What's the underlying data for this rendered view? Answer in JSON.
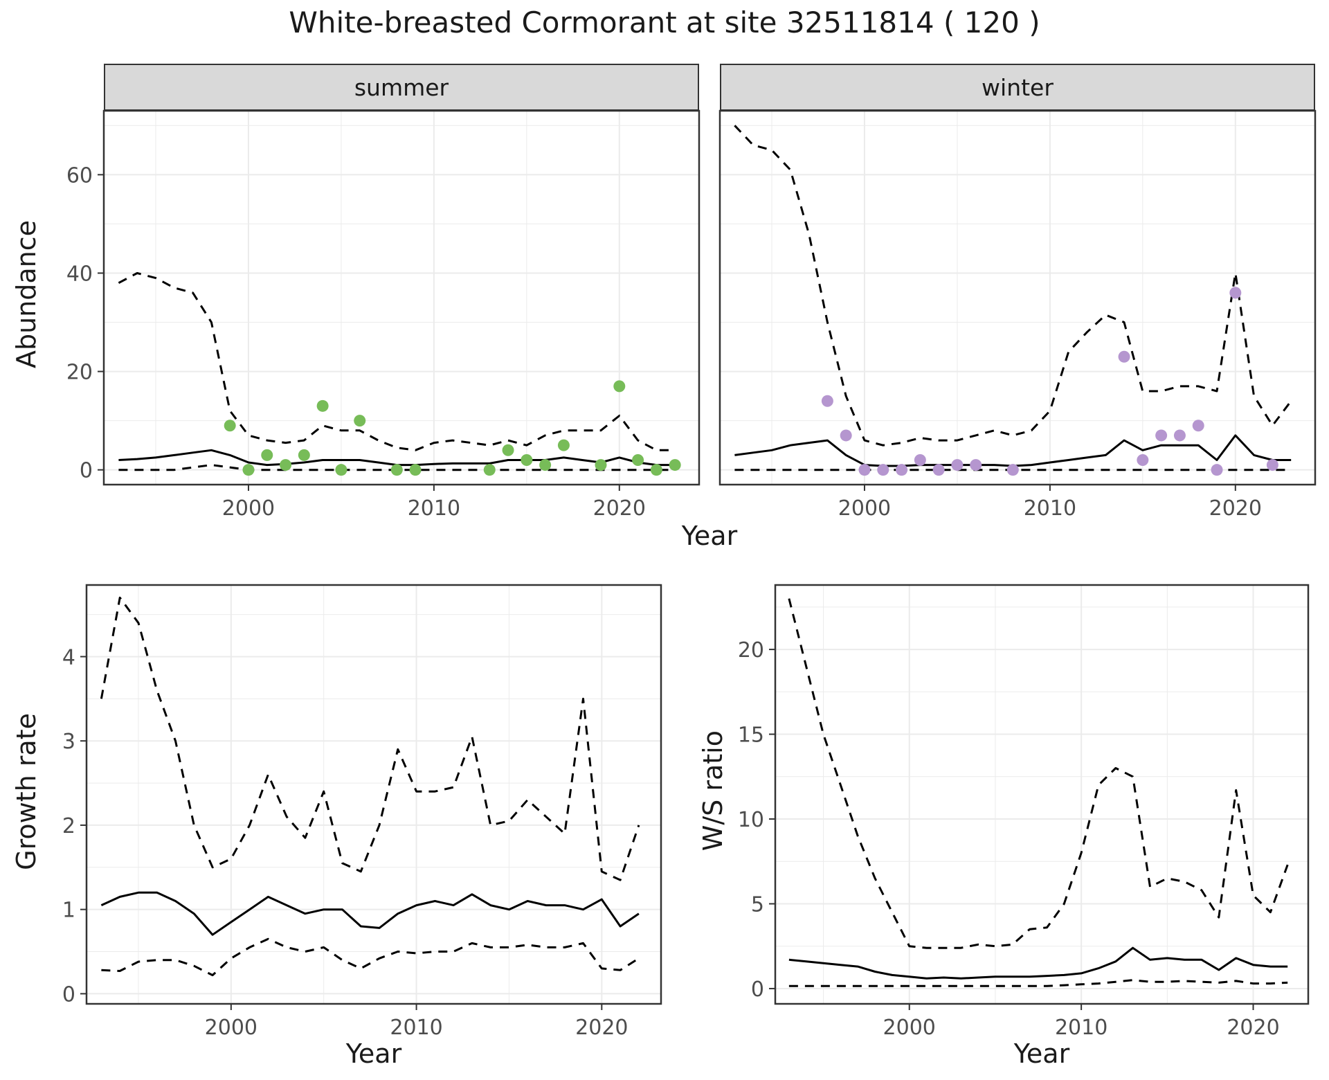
{
  "title": "White-breasted Cormorant at site 32511814 ( 120 )",
  "facets": [
    "summer",
    "winter"
  ],
  "colors": {
    "summer_points": "#77bc58",
    "winter_points": "#b596cf",
    "line": "#000000",
    "grid": "#ebebeb",
    "strip_bg": "#d9d9d9",
    "panel_border": "#333333",
    "tick_text": "#4d4d4d",
    "title_text": "#1a1a1a"
  },
  "chart_data": [
    {
      "id": "abundance_summer",
      "type": "line",
      "facet": "summer",
      "xlabel": "Year",
      "ylabel": "Abundance",
      "xlim": [
        1992.2,
        2024.3
      ],
      "ylim": [
        -3,
        73
      ],
      "xticks": [
        2000,
        2010,
        2020
      ],
      "yticks": [
        0,
        20,
        40,
        60
      ],
      "grid": true,
      "legend": "none",
      "series": [
        {
          "name": "upper-ci",
          "style": "dashed",
          "x": [
            1993,
            1994,
            1995,
            1996,
            1997,
            1998,
            1999,
            2000,
            2001,
            2002,
            2003,
            2004,
            2005,
            2006,
            2007,
            2008,
            2009,
            2010,
            2011,
            2012,
            2013,
            2014,
            2015,
            2016,
            2017,
            2018,
            2019,
            2020,
            2021,
            2022,
            2023
          ],
          "values": [
            38,
            40,
            39,
            37,
            36,
            30,
            12,
            7,
            6,
            5.5,
            6,
            9,
            8,
            8,
            6,
            4.5,
            4,
            5.5,
            6,
            5.5,
            5,
            6,
            5,
            7,
            8,
            8,
            8,
            11,
            6,
            4,
            4
          ]
        },
        {
          "name": "lower-ci",
          "style": "dashed",
          "x": [
            1993,
            1994,
            1995,
            1996,
            1997,
            1998,
            1999,
            2000,
            2001,
            2002,
            2003,
            2004,
            2005,
            2006,
            2007,
            2008,
            2009,
            2010,
            2011,
            2012,
            2013,
            2014,
            2015,
            2016,
            2017,
            2018,
            2019,
            2020,
            2021,
            2022,
            2023
          ],
          "values": [
            0,
            0,
            0,
            0,
            0.5,
            1,
            0.5,
            0,
            0,
            0,
            0,
            0,
            0,
            0,
            0,
            0,
            0,
            0,
            0,
            0,
            0,
            0,
            0,
            0,
            0,
            0,
            0,
            0,
            0,
            0,
            0
          ]
        },
        {
          "name": "median",
          "style": "solid",
          "x": [
            1993,
            1994,
            1995,
            1996,
            1997,
            1998,
            1999,
            2000,
            2001,
            2002,
            2003,
            2004,
            2005,
            2006,
            2007,
            2008,
            2009,
            2010,
            2011,
            2012,
            2013,
            2014,
            2015,
            2016,
            2017,
            2018,
            2019,
            2020,
            2021,
            2022,
            2023
          ],
          "values": [
            2,
            2.2,
            2.5,
            3,
            3.5,
            4,
            3,
            1.5,
            1,
            1.2,
            1.5,
            2,
            2,
            2,
            1.5,
            1,
            1,
            1.2,
            1.3,
            1.3,
            1.3,
            2,
            2,
            2,
            2.5,
            2,
            1.5,
            2.5,
            1.5,
            1,
            1
          ]
        },
        {
          "name": "observed-counts",
          "style": "points",
          "color_key": "summer_points",
          "x": [
            1999,
            2000,
            2001,
            2002,
            2003,
            2004,
            2005,
            2006,
            2008,
            2009,
            2013,
            2014,
            2015,
            2016,
            2017,
            2019,
            2020,
            2021,
            2022,
            2023
          ],
          "values": [
            9,
            0,
            3,
            1,
            3,
            13,
            0,
            10,
            0,
            0,
            0,
            4,
            2,
            1,
            5,
            1,
            17,
            2,
            0,
            1
          ]
        }
      ]
    },
    {
      "id": "abundance_winter",
      "type": "line",
      "facet": "winter",
      "xlabel": "Year",
      "ylabel": "Abundance",
      "xlim": [
        1992.2,
        2024.3
      ],
      "ylim": [
        -3,
        73
      ],
      "xticks": [
        2000,
        2010,
        2020
      ],
      "yticks": [
        0,
        20,
        40,
        60
      ],
      "grid": true,
      "legend": "none",
      "series": [
        {
          "name": "upper-ci",
          "style": "dashed",
          "x": [
            1993,
            1994,
            1995,
            1996,
            1997,
            1998,
            1999,
            2000,
            2001,
            2002,
            2003,
            2004,
            2005,
            2006,
            2007,
            2008,
            2009,
            2010,
            2011,
            2012,
            2013,
            2014,
            2015,
            2016,
            2017,
            2018,
            2019,
            2020,
            2021,
            2022,
            2023
          ],
          "values": [
            70,
            66,
            65,
            61,
            48,
            30,
            15,
            6,
            5,
            5.5,
            6.5,
            6,
            6,
            7,
            8,
            7,
            8,
            12,
            24,
            28,
            31.5,
            30,
            16,
            16,
            17,
            17,
            16,
            40,
            15,
            9,
            14
          ]
        },
        {
          "name": "lower-ci",
          "style": "dashed",
          "x": [
            1993,
            1994,
            1995,
            1996,
            1997,
            1998,
            1999,
            2000,
            2001,
            2002,
            2003,
            2004,
            2005,
            2006,
            2007,
            2008,
            2009,
            2010,
            2011,
            2012,
            2013,
            2014,
            2015,
            2016,
            2017,
            2018,
            2019,
            2020,
            2021,
            2022,
            2023
          ],
          "values": [
            0,
            0,
            0,
            0,
            0,
            0,
            0,
            0,
            0,
            0,
            0,
            0,
            0,
            0,
            0,
            0,
            0,
            0,
            0,
            0,
            0,
            0,
            0,
            0,
            0,
            0,
            0,
            0,
            0,
            0,
            0
          ]
        },
        {
          "name": "median",
          "style": "solid",
          "x": [
            1993,
            1994,
            1995,
            1996,
            1997,
            1998,
            1999,
            2000,
            2001,
            2002,
            2003,
            2004,
            2005,
            2006,
            2007,
            2008,
            2009,
            2010,
            2011,
            2012,
            2013,
            2014,
            2015,
            2016,
            2017,
            2018,
            2019,
            2020,
            2021,
            2022,
            2023
          ],
          "values": [
            3,
            3.5,
            4,
            5,
            5.5,
            6,
            3,
            1,
            0.8,
            0.8,
            1,
            1,
            1,
            1,
            1,
            0.8,
            1,
            1.5,
            2,
            2.5,
            3,
            6,
            4,
            5,
            5,
            5,
            2,
            7,
            3,
            2,
            2
          ]
        },
        {
          "name": "observed-counts",
          "style": "points",
          "color_key": "winter_points",
          "x": [
            1998,
            1999,
            2000,
            2001,
            2002,
            2003,
            2004,
            2005,
            2006,
            2008,
            2014,
            2015,
            2016,
            2017,
            2018,
            2019,
            2020,
            2022
          ],
          "values": [
            14,
            7,
            0,
            0,
            0,
            2,
            0,
            1,
            1,
            0,
            23,
            2,
            7,
            7,
            9,
            0,
            36,
            1
          ]
        }
      ]
    },
    {
      "id": "growth_rate",
      "type": "line",
      "facet": "",
      "xlabel": "Year",
      "ylabel": "Growth rate",
      "xlim": [
        1992.2,
        2023.2
      ],
      "ylim": [
        -0.12,
        4.85
      ],
      "xticks": [
        2000,
        2010,
        2020
      ],
      "yticks": [
        0,
        1,
        2,
        3,
        4
      ],
      "grid": true,
      "legend": "none",
      "series": [
        {
          "name": "upper-ci",
          "style": "dashed",
          "x": [
            1993,
            1994,
            1995,
            1996,
            1997,
            1998,
            1999,
            2000,
            2001,
            2002,
            2003,
            2004,
            2005,
            2006,
            2007,
            2008,
            2009,
            2010,
            2011,
            2012,
            2013,
            2014,
            2015,
            2016,
            2017,
            2018,
            2019,
            2020,
            2021,
            2022
          ],
          "values": [
            3.5,
            4.7,
            4.4,
            3.6,
            3.0,
            2.0,
            1.5,
            1.6,
            2.0,
            2.6,
            2.1,
            1.85,
            2.4,
            1.55,
            1.45,
            2.0,
            2.9,
            2.4,
            2.4,
            2.45,
            3.05,
            2.0,
            2.05,
            2.3,
            2.1,
            1.9,
            3.5,
            1.45,
            1.35,
            2.0
          ]
        },
        {
          "name": "lower-ci",
          "style": "dashed",
          "x": [
            1993,
            1994,
            1995,
            1996,
            1997,
            1998,
            1999,
            2000,
            2001,
            2002,
            2003,
            2004,
            2005,
            2006,
            2007,
            2008,
            2009,
            2010,
            2011,
            2012,
            2013,
            2014,
            2015,
            2016,
            2017,
            2018,
            2019,
            2020,
            2021,
            2022
          ],
          "values": [
            0.28,
            0.27,
            0.38,
            0.4,
            0.4,
            0.33,
            0.22,
            0.42,
            0.55,
            0.65,
            0.55,
            0.5,
            0.55,
            0.4,
            0.3,
            0.42,
            0.5,
            0.48,
            0.5,
            0.5,
            0.6,
            0.55,
            0.55,
            0.58,
            0.55,
            0.55,
            0.6,
            0.3,
            0.28,
            0.42
          ]
        },
        {
          "name": "median",
          "style": "solid",
          "x": [
            1993,
            1994,
            1995,
            1996,
            1997,
            1998,
            1999,
            2000,
            2001,
            2002,
            2003,
            2004,
            2005,
            2006,
            2007,
            2008,
            2009,
            2010,
            2011,
            2012,
            2013,
            2014,
            2015,
            2016,
            2017,
            2018,
            2019,
            2020,
            2021,
            2022
          ],
          "values": [
            1.05,
            1.15,
            1.2,
            1.2,
            1.1,
            0.95,
            0.7,
            0.85,
            1.0,
            1.15,
            1.05,
            0.95,
            1.0,
            1.0,
            0.8,
            0.78,
            0.95,
            1.05,
            1.1,
            1.05,
            1.18,
            1.05,
            1.0,
            1.1,
            1.05,
            1.05,
            1.0,
            1.12,
            0.8,
            0.95
          ]
        }
      ]
    },
    {
      "id": "ws_ratio",
      "type": "line",
      "facet": "",
      "xlabel": "Year",
      "ylabel": "W/S ratio",
      "xlim": [
        1992.2,
        2023.2
      ],
      "ylim": [
        -0.9,
        23.8
      ],
      "xticks": [
        2000,
        2010,
        2020
      ],
      "yticks": [
        0,
        5,
        10,
        15,
        20
      ],
      "grid": true,
      "legend": "none",
      "series": [
        {
          "name": "upper-ci",
          "style": "dashed",
          "x": [
            1993,
            1994,
            1995,
            1996,
            1997,
            1998,
            1999,
            2000,
            2001,
            2002,
            2003,
            2004,
            2005,
            2006,
            2007,
            2008,
            2009,
            2010,
            2011,
            2012,
            2013,
            2014,
            2015,
            2016,
            2017,
            2018,
            2019,
            2020,
            2021,
            2022
          ],
          "values": [
            23,
            19,
            15,
            12,
            9,
            6.5,
            4.5,
            2.5,
            2.4,
            2.4,
            2.4,
            2.6,
            2.5,
            2.6,
            3.5,
            3.6,
            5,
            8,
            12,
            13,
            12.5,
            6,
            6.5,
            6.3,
            5.8,
            4.2,
            11.7,
            5.5,
            4.5,
            7.3
          ]
        },
        {
          "name": "lower-ci",
          "style": "dashed",
          "x": [
            1993,
            1994,
            1995,
            1996,
            1997,
            1998,
            1999,
            2000,
            2001,
            2002,
            2003,
            2004,
            2005,
            2006,
            2007,
            2008,
            2009,
            2010,
            2011,
            2012,
            2013,
            2014,
            2015,
            2016,
            2017,
            2018,
            2019,
            2020,
            2021,
            2022
          ],
          "values": [
            0.15,
            0.15,
            0.15,
            0.15,
            0.15,
            0.15,
            0.15,
            0.15,
            0.15,
            0.15,
            0.15,
            0.15,
            0.15,
            0.15,
            0.15,
            0.15,
            0.2,
            0.25,
            0.3,
            0.4,
            0.5,
            0.4,
            0.4,
            0.45,
            0.4,
            0.35,
            0.45,
            0.3,
            0.3,
            0.35
          ]
        },
        {
          "name": "median",
          "style": "solid",
          "x": [
            1993,
            1994,
            1995,
            1996,
            1997,
            1998,
            1999,
            2000,
            2001,
            2002,
            2003,
            2004,
            2005,
            2006,
            2007,
            2008,
            2009,
            2010,
            2011,
            2012,
            2013,
            2014,
            2015,
            2016,
            2017,
            2018,
            2019,
            2020,
            2021,
            2022
          ],
          "values": [
            1.7,
            1.6,
            1.5,
            1.4,
            1.3,
            1.0,
            0.8,
            0.7,
            0.6,
            0.65,
            0.6,
            0.65,
            0.7,
            0.7,
            0.7,
            0.75,
            0.8,
            0.9,
            1.2,
            1.6,
            2.4,
            1.7,
            1.8,
            1.7,
            1.7,
            1.1,
            1.8,
            1.4,
            1.3,
            1.3
          ]
        }
      ]
    }
  ]
}
